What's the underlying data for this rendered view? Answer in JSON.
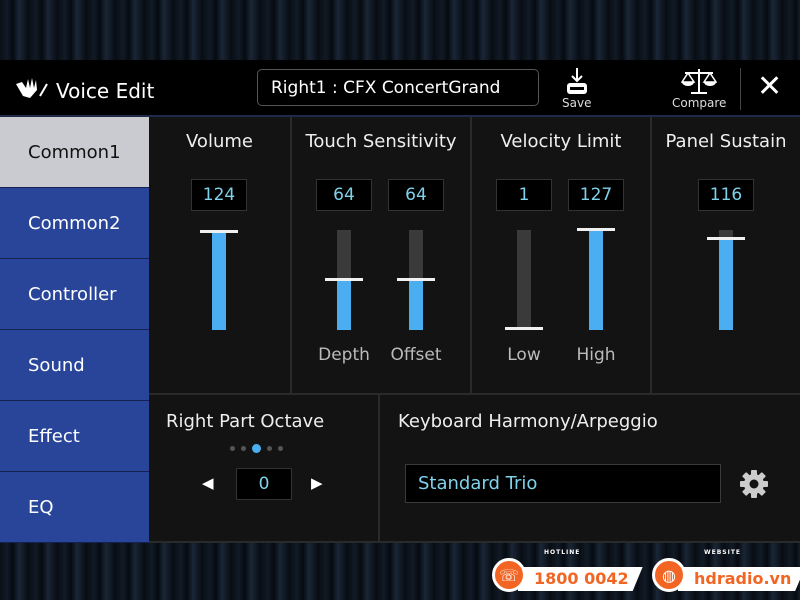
{
  "header": {
    "title": "Voice Edit",
    "voice": "Right1 : CFX ConcertGrand",
    "save_label": "Save",
    "compare_label": "Compare"
  },
  "sidebar": {
    "items": [
      {
        "label": "Common1",
        "selected": true
      },
      {
        "label": "Common2"
      },
      {
        "label": "Controller"
      },
      {
        "label": "Sound"
      },
      {
        "label": "Effect"
      },
      {
        "label": "EQ"
      }
    ]
  },
  "sliders": {
    "volume": {
      "title": "Volume",
      "value": 124
    },
    "touch": {
      "title": "Touch Sensitivity",
      "depth": {
        "label": "Depth",
        "value": 64
      },
      "offset": {
        "label": "Offset",
        "value": 64
      }
    },
    "velocity": {
      "title": "Velocity Limit",
      "low": {
        "label": "Low",
        "value": 1
      },
      "high": {
        "label": "High",
        "value": 127
      }
    },
    "sustain": {
      "title": "Panel Sustain",
      "value": 116
    },
    "max": 127
  },
  "octave": {
    "title": "Right Part Octave",
    "value": "0",
    "position_index": 2,
    "positions": 5
  },
  "harmony": {
    "title": "Keyboard Harmony/Arpeggio",
    "value": "Standard Trio"
  },
  "ads": {
    "hotline_label": "HOTLINE",
    "hotline": "1800 0042",
    "website_label": "WEBSITE",
    "website": "hdradio.vn",
    "color": "#f26522"
  },
  "colors": {
    "accent": "#4aaef0",
    "sidebar": "#28459a",
    "value_text": "#7fd2ea"
  }
}
